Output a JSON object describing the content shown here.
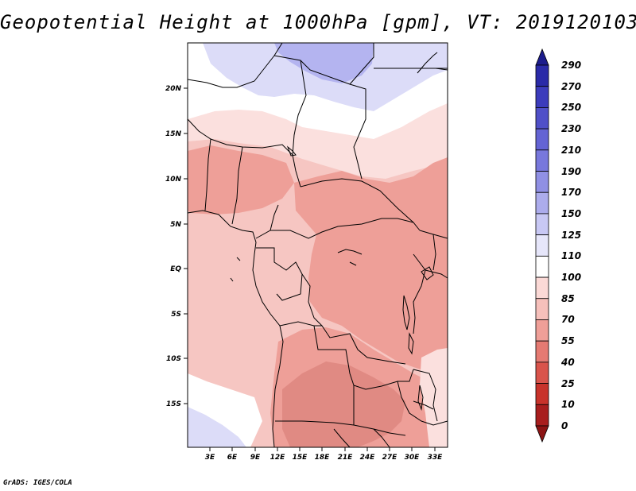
{
  "title": "Geopotential Height at 1000hPa [gpm], VT: 2019120103",
  "credit": "GrADS: IGES/COLA",
  "map": {
    "lat_labels": [
      "20N",
      "15N",
      "10N",
      "5N",
      "EQ",
      "5S",
      "10S",
      "15S"
    ],
    "lon_labels": [
      "3E",
      "6E",
      "9E",
      "12E",
      "15E",
      "18E",
      "21E",
      "24E",
      "27E",
      "30E",
      "33E"
    ],
    "field_colors": {
      "dark_red": "#c0392b",
      "red": "#e06c63",
      "salmon": "#ee9f98",
      "light_salmon": "#f6c6c2",
      "pale_pink": "#fbe0de",
      "white": "#ffffff",
      "pale_blue": "#dcdcf8",
      "light_blue": "#c8c8f4",
      "lavender": "#b4b4f0"
    }
  },
  "colorbar": {
    "labels": [
      "290",
      "270",
      "250",
      "230",
      "210",
      "190",
      "170",
      "150",
      "125",
      "110",
      "100",
      "85",
      "70",
      "55",
      "40",
      "25",
      "10",
      "0"
    ],
    "colors": [
      "#1c1c8c",
      "#2a2aa8",
      "#3c3cbc",
      "#5050c8",
      "#6464d4",
      "#7878dc",
      "#9090e4",
      "#acacec",
      "#c8c8f4",
      "#e6e6fa",
      "#ffffff",
      "#fbd9d6",
      "#f6c0bb",
      "#ef9f98",
      "#e57a72",
      "#d9544b",
      "#c8332b",
      "#a81e1e",
      "#8c1414"
    ]
  }
}
